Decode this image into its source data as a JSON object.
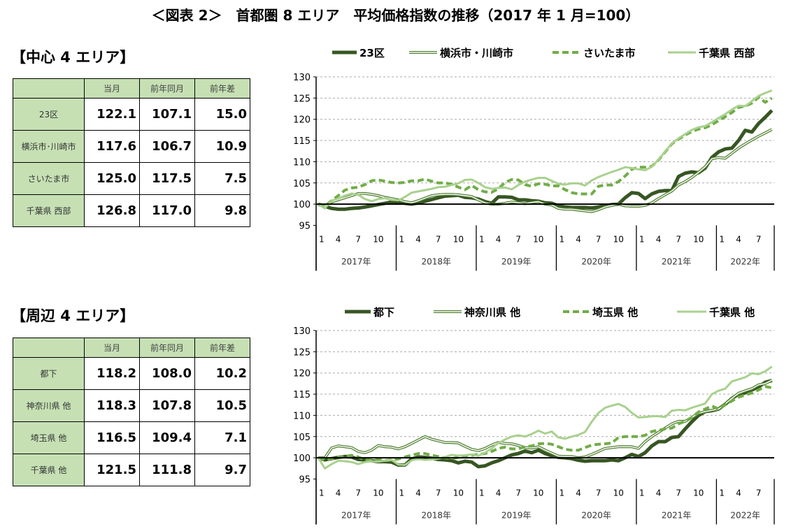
{
  "title": "＜図表 2＞　首都圏 8 エリア　平均価格指数の推移（2017 年 1 月=100）",
  "colors": {
    "dark": "#375623",
    "mid": "#548235",
    "dashed": "#70AD47",
    "light": "#A9D18E",
    "table_header": "#C6E0B4"
  },
  "sections": [
    {
      "heading": "【中心 4 エリア】",
      "table": {
        "headers": [
          "",
          "当月",
          "前年同月",
          "前年差"
        ],
        "rows": [
          {
            "name": "23区",
            "values": [
              "122.1",
              "107.1",
              "15.0"
            ]
          },
          {
            "name": "横浜市･川崎市",
            "values": [
              "117.6",
              "106.7",
              "10.9"
            ]
          },
          {
            "name": "さいたま市",
            "values": [
              "125.0",
              "117.5",
              "7.5"
            ]
          },
          {
            "name": "千葉県 西部",
            "values": [
              "126.8",
              "117.0",
              "9.8"
            ]
          }
        ]
      }
    },
    {
      "heading": "【周辺 4 エリア】",
      "table": {
        "headers": [
          "",
          "当月",
          "前年同月",
          "前年差"
        ],
        "rows": [
          {
            "name": "都下",
            "values": [
              "118.2",
              "108.0",
              "10.2"
            ]
          },
          {
            "name": "神奈川県 他",
            "values": [
              "118.3",
              "107.8",
              "10.5"
            ]
          },
          {
            "name": "埼玉県 他",
            "values": [
              "116.5",
              "109.4",
              "7.1"
            ]
          },
          {
            "name": "千葉県 他",
            "values": [
              "121.5",
              "111.8",
              "9.7"
            ]
          }
        ]
      }
    }
  ],
  "chart_data": [
    {
      "type": "line",
      "x_range": [
        "2017-01",
        "2022-09"
      ],
      "x_interval": "monthly",
      "month_tick_labels": [
        "1",
        "4",
        "7",
        "10"
      ],
      "year_labels": [
        "2017年",
        "2018年",
        "2019年",
        "2020年",
        "2021年",
        "2022年"
      ],
      "ylim": [
        95,
        130
      ],
      "yticks": [
        "95",
        "100",
        "105",
        "110",
        "115",
        "120",
        "125",
        "130"
      ],
      "grid": "horizontal dashed",
      "baseline": 100,
      "legend_position": "top",
      "series": [
        {
          "name": "23区",
          "style": "thick",
          "color": "#375623",
          "values": [
            100,
            99.5,
            99,
            98.8,
            98.8,
            99,
            99.1,
            99.3,
            99.6,
            99.9,
            100.2,
            100.5,
            100.5,
            100.2,
            100,
            100.3,
            100.7,
            101.1,
            101.5,
            101.9,
            102,
            102.1,
            101.6,
            101.5,
            101.2,
            100.6,
            100.2,
            101.7,
            101.7,
            101.6,
            101,
            101,
            100.8,
            100.7,
            100.3,
            100.2,
            99.6,
            99.3,
            99.2,
            99.2,
            99.2,
            99.1,
            99.3,
            99.6,
            99.9,
            100,
            101.5,
            102.7,
            102.5,
            101.3,
            102.4,
            103,
            103.2,
            103.2,
            106.5,
            107.3,
            107.6,
            107.4,
            108.5,
            111,
            112.3,
            113,
            113.2,
            115,
            117.4,
            117,
            119,
            120.5,
            122.1
          ]
        },
        {
          "name": "横浜市・川崎市",
          "style": "double",
          "color": "#548235",
          "values": [
            100,
            99.5,
            100.5,
            101,
            101.5,
            102,
            102.5,
            102.5,
            102.3,
            102,
            101.6,
            101.3,
            101,
            100.6,
            100.3,
            100.8,
            101.4,
            102,
            102.2,
            102.3,
            102.3,
            102.2,
            102,
            101.8,
            101,
            100.3,
            100,
            100,
            100.2,
            100.5,
            100.3,
            100.1,
            100.4,
            100.6,
            100,
            99.8,
            99,
            98.8,
            98.8,
            98.6,
            98.4,
            98.2,
            98.7,
            99.3,
            99.7,
            100,
            99.6,
            99.5,
            99.5,
            99.7,
            100.3,
            101.3,
            102.2,
            103.1,
            104.5,
            105.3,
            106.3,
            107.5,
            108.8,
            110.7,
            111,
            110.8,
            112,
            113.2,
            114.2,
            115.1,
            116,
            116.8,
            117.6
          ]
        },
        {
          "name": "さいたま市",
          "style": "dashed",
          "color": "#70AD47",
          "values": [
            100,
            99.5,
            100.8,
            102,
            103.3,
            103.8,
            104,
            104.6,
            105.5,
            105.7,
            105.4,
            105.1,
            105,
            105.1,
            105.5,
            105.5,
            105.9,
            105.4,
            105,
            105,
            104.7,
            104,
            103.4,
            104.4,
            103.4,
            102.9,
            102.8,
            103.6,
            105.1,
            105.8,
            105.7,
            104.6,
            104.2,
            104.8,
            104.7,
            104.3,
            104.3,
            103.4,
            102.7,
            102.4,
            102.4,
            102.4,
            104.2,
            104.5,
            104.5,
            105.3,
            106.6,
            108.2,
            108.7,
            108.7,
            108.9,
            110.4,
            112.3,
            114.2,
            115.3,
            116.3,
            117.1,
            117.7,
            118,
            118.7,
            119.7,
            120.6,
            121.6,
            122.8,
            123.1,
            123.8,
            125.2,
            124,
            125
          ]
        },
        {
          "name": "千葉県 西部",
          "style": "light",
          "color": "#A9D18E",
          "values": [
            100,
            99,
            100.8,
            101.3,
            102,
            102.5,
            102.2,
            101.2,
            100.7,
            101.2,
            101.4,
            101,
            100.9,
            101.7,
            102.7,
            103,
            103.3,
            103.6,
            104,
            104.1,
            104.5,
            104.9,
            105.7,
            105.8,
            105,
            104,
            103.6,
            103.8,
            103.9,
            103.5,
            104.5,
            105.3,
            105.8,
            106.2,
            106.2,
            105.5,
            104.8,
            104.6,
            104.9,
            104.9,
            104.4,
            105.6,
            106.4,
            107,
            107.6,
            108.1,
            108.7,
            108.5,
            108.2,
            108,
            108.8,
            110.5,
            112.4,
            114.3,
            115.5,
            116.5,
            117.5,
            118.1,
            118.4,
            119.3,
            120.3,
            121.2,
            122.3,
            123.2,
            123.1,
            124.3,
            125.5,
            126.2,
            126.8
          ]
        }
      ]
    },
    {
      "type": "line",
      "x_range": [
        "2017-01",
        "2022-09"
      ],
      "x_interval": "monthly",
      "month_tick_labels": [
        "1",
        "4",
        "7",
        "10"
      ],
      "year_labels": [
        "2017年",
        "2018年",
        "2019年",
        "2020年",
        "2021年",
        "2022年"
      ],
      "ylim": [
        95,
        130
      ],
      "yticks": [
        "95",
        "100",
        "105",
        "110",
        "115",
        "120",
        "125",
        "130"
      ],
      "grid": "horizontal dashed",
      "baseline": 100,
      "legend_position": "top",
      "series": [
        {
          "name": "都下",
          "style": "thick",
          "color": "#375623",
          "values": [
            100,
            99.5,
            99.8,
            100.1,
            100.3,
            100.2,
            99.6,
            99.5,
            99.3,
            99.1,
            99.1,
            99,
            98.3,
            98.3,
            99.7,
            100.2,
            100.1,
            99.9,
            99.6,
            99.5,
            99.3,
            98.8,
            99.2,
            99,
            97.9,
            98.1,
            98.8,
            99.3,
            100,
            100.7,
            101,
            101.6,
            101.2,
            101.8,
            101,
            100.5,
            100.1,
            100,
            99.8,
            99.4,
            99.2,
            99.3,
            99.3,
            99.3,
            99.5,
            99.3,
            100,
            100.8,
            100.3,
            101.2,
            102.8,
            103.8,
            103.8,
            104.8,
            105,
            106.8,
            108.5,
            110,
            110.9,
            111.1,
            111.5,
            112.6,
            114,
            115,
            115.3,
            116,
            116.7,
            117.8,
            118.2
          ]
        },
        {
          "name": "神奈川県 他",
          "style": "double",
          "color": "#548235",
          "values": [
            100,
            100,
            102.3,
            102.8,
            102.6,
            102.4,
            101.5,
            101.2,
            101.8,
            102.9,
            102.6,
            102.5,
            102.1,
            102.6,
            103.4,
            104.2,
            105,
            104.4,
            104,
            103.6,
            103.6,
            103.5,
            102.7,
            102,
            101.7,
            102.2,
            103,
            103.6,
            103.4,
            103.3,
            102.9,
            102.4,
            102.3,
            102.6,
            101.8,
            101.1,
            100.4,
            100.3,
            100.3,
            100,
            100.2,
            100.8,
            101.5,
            102.2,
            102.4,
            102.6,
            102.6,
            102.6,
            102.2,
            103.8,
            105,
            106,
            107,
            108,
            108.6,
            108.6,
            109.5,
            110.5,
            110.9,
            111.2,
            111.5,
            112.7,
            114,
            115.2,
            115.8,
            116.3,
            117.2,
            117.5,
            118.3
          ]
        },
        {
          "name": "埼玉県 他",
          "style": "dashed",
          "color": "#70AD47",
          "values": [
            100,
            99.5,
            99.8,
            100.2,
            100.3,
            100.6,
            100.2,
            99.5,
            99.5,
            99.6,
            99.3,
            99.5,
            99.7,
            100.2,
            100.6,
            101,
            101,
            100.6,
            100.3,
            100,
            99.8,
            100.1,
            100.5,
            100.6,
            100.8,
            101,
            101.5,
            102.2,
            102.5,
            102.1,
            102.1,
            102.6,
            102.8,
            103.3,
            103.4,
            103.2,
            102.6,
            102,
            101.8,
            101.8,
            102.4,
            103,
            103.2,
            103.3,
            103.5,
            104.8,
            105,
            105,
            105,
            105.3,
            106.2,
            106.5,
            106.8,
            107,
            108,
            108.6,
            109.5,
            110.8,
            111.5,
            112.2,
            111.5,
            112.5,
            113.4,
            114.3,
            114.8,
            115.3,
            116,
            116.8,
            116.5
          ]
        },
        {
          "name": "千葉県 他",
          "style": "light",
          "color": "#A9D18E",
          "values": [
            100,
            97.5,
            98.5,
            99.3,
            99.2,
            99,
            98.5,
            99,
            99.2,
            99.1,
            99.3,
            99.5,
            98.4,
            98.3,
            99.4,
            99.7,
            99.5,
            99.6,
            99.8,
            100.2,
            100.7,
            100.5,
            100.6,
            100.8,
            100.5,
            101.2,
            102.2,
            103.5,
            104.3,
            105,
            105.3,
            105,
            105.6,
            106.4,
            105.7,
            106.2,
            104.8,
            104.5,
            105,
            105.4,
            106.1,
            108.5,
            110.6,
            111.8,
            112.3,
            112.7,
            112,
            110.6,
            109.5,
            109.6,
            109.8,
            109.8,
            109.6,
            111.1,
            111.3,
            111.2,
            111.8,
            112.3,
            112.8,
            115,
            115.8,
            116.3,
            118,
            118.5,
            119,
            119.9,
            119.7,
            120.4,
            121.5
          ]
        }
      ]
    }
  ]
}
